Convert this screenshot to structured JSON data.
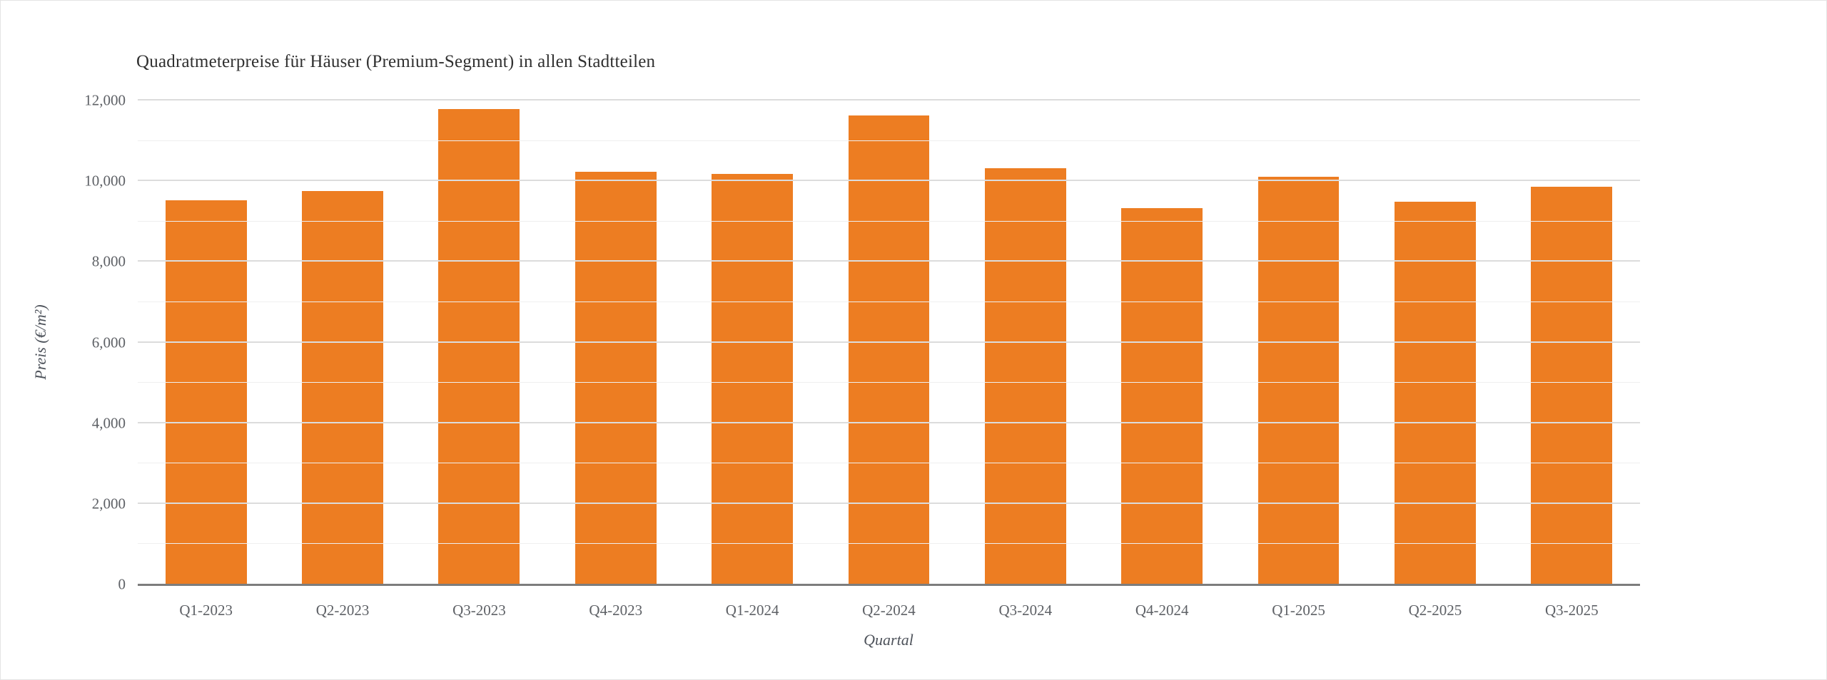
{
  "chart_data": {
    "type": "bar",
    "title": "Quadratmeterpreise für Häuser (Premium-Segment) in allen Stadtteilen",
    "xlabel": "Quartal",
    "ylabel": "Preis (€/m²)",
    "categories": [
      "Q1-2023",
      "Q2-2023",
      "Q3-2023",
      "Q4-2023",
      "Q1-2024",
      "Q2-2024",
      "Q3-2024",
      "Q4-2024",
      "Q1-2025",
      "Q2-2025",
      "Q3-2025"
    ],
    "values": [
      9520,
      9760,
      11780,
      10230,
      10180,
      11630,
      10330,
      9330,
      10110,
      9490,
      9870
    ],
    "ylim": [
      0,
      12000
    ],
    "y_major_ticks": [
      0,
      2000,
      4000,
      6000,
      8000,
      10000,
      12000
    ],
    "y_tick_labels": [
      "0",
      "2,000",
      "4,000",
      "6,000",
      "8,000",
      "10,000",
      "12,000"
    ],
    "y_minor_step": 1000,
    "grid": "on",
    "legend": "none",
    "bar_color": "#ED7D22"
  },
  "colors": {
    "bar": "#ED7D22",
    "major_grid": "#dcdcdc",
    "minor_grid": "#efefef",
    "axis_line": "#7d7d7d",
    "title_text": "#303030",
    "tick_text": "#5e6166",
    "background": "#ffffff"
  }
}
